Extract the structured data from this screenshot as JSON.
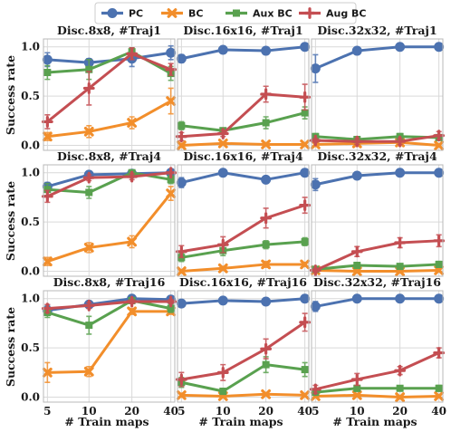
{
  "legend": {
    "placement": "top-center",
    "items": [
      {
        "name": "PC",
        "color": "#4c72b0",
        "marker": "circle"
      },
      {
        "name": "BC",
        "color": "#f28e2b",
        "marker": "x"
      },
      {
        "name": "Aux BC",
        "color": "#59a14f",
        "marker": "square"
      },
      {
        "name": "Aug BC",
        "color": "#c44e52",
        "marker": "plus"
      }
    ]
  },
  "shared": {
    "ylabel": "Success rate",
    "xlabel": "# Train maps",
    "x_ticks": [
      "5",
      "10",
      "20",
      "40"
    ],
    "y_ticks": [
      "0.0",
      "0.5",
      "1.0"
    ],
    "ylim": [
      -0.05,
      1.08
    ],
    "grid": true
  },
  "chart_data": [
    {
      "type": "line",
      "title": "Disc.8x8, #Traj1",
      "x": [
        5,
        10,
        20,
        40
      ],
      "series": [
        {
          "name": "PC",
          "values": [
            0.87,
            0.84,
            0.88,
            0.94
          ],
          "err": [
            0.07,
            0.04,
            0.08,
            0.07
          ]
        },
        {
          "name": "BC",
          "values": [
            0.09,
            0.14,
            0.23,
            0.45
          ],
          "err": [
            0.04,
            0.06,
            0.06,
            0.13
          ]
        },
        {
          "name": "Aux BC",
          "values": [
            0.74,
            0.77,
            0.95,
            0.73
          ],
          "err": [
            0.07,
            0.1,
            0.04,
            0.07
          ]
        },
        {
          "name": "Aug BC",
          "values": [
            0.24,
            0.58,
            0.93,
            0.77
          ],
          "err": [
            0.07,
            0.17,
            0.06,
            0.06
          ]
        }
      ]
    },
    {
      "type": "line",
      "title": "Disc.16x16, #Traj1",
      "x": [
        5,
        10,
        20,
        40
      ],
      "series": [
        {
          "name": "PC",
          "values": [
            0.88,
            0.97,
            0.96,
            1.0
          ],
          "err": [
            0.04,
            0.01,
            0.01,
            0.0
          ]
        },
        {
          "name": "BC",
          "values": [
            0.0,
            0.02,
            0.01,
            0.01
          ],
          "err": [
            0.02,
            0.01,
            0.01,
            0.01
          ]
        },
        {
          "name": "Aux BC",
          "values": [
            0.2,
            0.15,
            0.23,
            0.33
          ],
          "err": [
            0.04,
            0.02,
            0.06,
            0.06
          ]
        },
        {
          "name": "Aug BC",
          "values": [
            0.09,
            0.12,
            0.52,
            0.49
          ],
          "err": [
            0.04,
            0.03,
            0.08,
            0.13
          ]
        }
      ]
    },
    {
      "type": "line",
      "title": "Disc.32x32, #Traj1",
      "x": [
        5,
        10,
        20,
        40
      ],
      "series": [
        {
          "name": "PC",
          "values": [
            0.78,
            0.96,
            1.0,
            1.0
          ],
          "err": [
            0.14,
            0.03,
            0.0,
            0.0
          ]
        },
        {
          "name": "BC",
          "values": [
            0.01,
            0.02,
            0.03,
            0.0
          ],
          "err": [
            0.02,
            0.01,
            0.02,
            0.01
          ]
        },
        {
          "name": "Aux BC",
          "values": [
            0.09,
            0.06,
            0.09,
            0.08
          ],
          "err": [
            0.03,
            0.03,
            0.03,
            0.02
          ]
        },
        {
          "name": "Aug BC",
          "values": [
            0.05,
            0.04,
            0.04,
            0.1
          ],
          "err": [
            0.02,
            0.03,
            0.03,
            0.04
          ]
        }
      ]
    },
    {
      "type": "line",
      "title": "Disc.8x8, #Traj4",
      "x": [
        5,
        10,
        20,
        40
      ],
      "series": [
        {
          "name": "PC",
          "values": [
            0.86,
            0.98,
            0.99,
            1.0
          ],
          "err": [
            0.04,
            0.02,
            0.01,
            0.0
          ]
        },
        {
          "name": "BC",
          "values": [
            0.1,
            0.24,
            0.3,
            0.79
          ],
          "err": [
            0.04,
            0.05,
            0.06,
            0.07
          ]
        },
        {
          "name": "Aux BC",
          "values": [
            0.83,
            0.8,
            1.0,
            0.93
          ],
          "err": [
            0.06,
            0.06,
            0.01,
            0.04
          ]
        },
        {
          "name": "Aug BC",
          "values": [
            0.76,
            0.95,
            0.96,
            1.0
          ],
          "err": [
            0.06,
            0.03,
            0.03,
            0.0
          ]
        }
      ]
    },
    {
      "type": "line",
      "title": "Disc.16x16, #Traj4",
      "x": [
        5,
        10,
        20,
        40
      ],
      "series": [
        {
          "name": "PC",
          "values": [
            0.9,
            1.0,
            0.93,
            1.0
          ],
          "err": [
            0.05,
            0.0,
            0.03,
            0.0
          ]
        },
        {
          "name": "BC",
          "values": [
            0.0,
            0.03,
            0.07,
            0.07
          ],
          "err": [
            0.01,
            0.02,
            0.03,
            0.02
          ]
        },
        {
          "name": "Aux BC",
          "values": [
            0.14,
            0.21,
            0.27,
            0.3
          ],
          "err": [
            0.04,
            0.05,
            0.04,
            0.04
          ]
        },
        {
          "name": "Aug BC",
          "values": [
            0.2,
            0.27,
            0.54,
            0.67
          ],
          "err": [
            0.06,
            0.08,
            0.1,
            0.08
          ]
        }
      ]
    },
    {
      "type": "line",
      "title": "Disc.32x32, #Traj4",
      "x": [
        5,
        10,
        20,
        40
      ],
      "series": [
        {
          "name": "PC",
          "values": [
            0.88,
            0.97,
            1.0,
            1.0
          ],
          "err": [
            0.06,
            0.02,
            0.0,
            0.0
          ]
        },
        {
          "name": "BC",
          "values": [
            0.01,
            0.0,
            0.0,
            0.01
          ],
          "err": [
            0.01,
            0.01,
            0.01,
            0.01
          ]
        },
        {
          "name": "Aux BC",
          "values": [
            0.02,
            0.06,
            0.05,
            0.07
          ],
          "err": [
            0.02,
            0.03,
            0.02,
            0.03
          ]
        },
        {
          "name": "Aug BC",
          "values": [
            0.01,
            0.2,
            0.29,
            0.31
          ],
          "err": [
            0.02,
            0.05,
            0.05,
            0.06
          ]
        }
      ]
    },
    {
      "type": "line",
      "title": "Disc.8x8, #Traj16",
      "x": [
        5,
        10,
        20,
        40
      ],
      "series": [
        {
          "name": "PC",
          "values": [
            0.88,
            0.94,
            1.0,
            0.99
          ],
          "err": [
            0.05,
            0.03,
            0.01,
            0.01
          ]
        },
        {
          "name": "BC",
          "values": [
            0.25,
            0.26,
            0.87,
            0.87
          ],
          "err": [
            0.1,
            0.05,
            0.03,
            0.03
          ]
        },
        {
          "name": "Aux BC",
          "values": [
            0.86,
            0.73,
            0.98,
            0.9
          ],
          "err": [
            0.05,
            0.09,
            0.02,
            0.04
          ]
        },
        {
          "name": "Aug BC",
          "values": [
            0.9,
            0.93,
            0.97,
            0.97
          ],
          "err": [
            0.04,
            0.03,
            0.02,
            0.02
          ]
        }
      ]
    },
    {
      "type": "line",
      "title": "Disc.16x16, #Traj16",
      "x": [
        5,
        10,
        20,
        40
      ],
      "series": [
        {
          "name": "PC",
          "values": [
            0.95,
            0.98,
            0.97,
            1.0
          ],
          "err": [
            0.03,
            0.01,
            0.02,
            0.0
          ]
        },
        {
          "name": "BC",
          "values": [
            0.02,
            0.01,
            0.03,
            0.02
          ],
          "err": [
            0.02,
            0.01,
            0.01,
            0.01
          ]
        },
        {
          "name": "Aux BC",
          "values": [
            0.15,
            0.06,
            0.33,
            0.28
          ],
          "err": [
            0.05,
            0.03,
            0.08,
            0.07
          ]
        },
        {
          "name": "Aug BC",
          "values": [
            0.18,
            0.25,
            0.49,
            0.76
          ],
          "err": [
            0.07,
            0.08,
            0.1,
            0.09
          ]
        }
      ]
    },
    {
      "type": "line",
      "title": "Disc.32x32, #Traj16",
      "x": [
        5,
        10,
        20,
        40
      ],
      "series": [
        {
          "name": "PC",
          "values": [
            0.92,
            1.0,
            1.0,
            1.0
          ],
          "err": [
            0.05,
            0.0,
            0.0,
            0.0
          ]
        },
        {
          "name": "BC",
          "values": [
            0.01,
            0.02,
            0.0,
            0.01
          ],
          "err": [
            0.01,
            0.01,
            0.01,
            0.01
          ]
        },
        {
          "name": "Aux BC",
          "values": [
            0.05,
            0.09,
            0.09,
            0.09
          ],
          "err": [
            0.03,
            0.03,
            0.02,
            0.03
          ]
        },
        {
          "name": "Aug BC",
          "values": [
            0.08,
            0.18,
            0.27,
            0.45
          ],
          "err": [
            0.04,
            0.06,
            0.04,
            0.05
          ]
        }
      ]
    }
  ]
}
